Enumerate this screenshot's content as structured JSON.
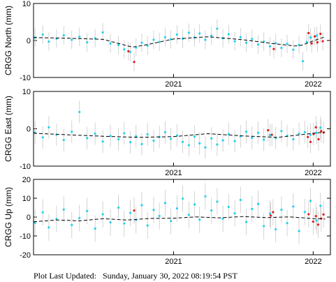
{
  "footer": {
    "label": "Plot Last Updated:",
    "timestamp": "Sunday, January 30, 2022 08:19:54 PST"
  },
  "colors": {
    "observation": "#22d3ee",
    "flagged": "#e31a1c",
    "error_bar": "#c8c8c8",
    "model": "#000000"
  },
  "chart_data": [
    {
      "type": "scatter",
      "ylabel": "CRGG North (mm)",
      "ylim": [
        -10,
        10
      ],
      "yticks": [
        -10,
        0,
        10
      ],
      "xlim": [
        "2020-01-01",
        "2022-02-15"
      ],
      "xticks": [
        {
          "label": "2021",
          "date": "2021-01-01"
        },
        {
          "label": "2022",
          "date": "2022-01-01"
        }
      ],
      "error_bar_mm": 2.5,
      "model_trend": {
        "x": [
          "2020-01-01",
          "2020-04-01",
          "2020-07-01",
          "2020-09-15",
          "2020-10-15",
          "2021-01-01",
          "2021-04-01",
          "2021-07-01",
          "2021-09-15",
          "2021-11-15",
          "2021-12-01",
          "2022-01-15",
          "2022-02-01"
        ],
        "y": [
          0.8,
          0.6,
          0.3,
          -1.8,
          -1.3,
          0.4,
          1.0,
          0.2,
          -0.8,
          -1.5,
          -1.3,
          0.4,
          1.0
        ]
      },
      "series": [
        {
          "points": [
            [
              "2020-01-05",
              0.8
            ],
            [
              "2020-01-25",
              1.6
            ],
            [
              "2020-02-10",
              -0.3
            ],
            [
              "2020-03-01",
              0.5
            ],
            [
              "2020-03-20",
              1.4
            ],
            [
              "2020-04-10",
              0.2
            ],
            [
              "2020-04-30",
              1.0
            ],
            [
              "2020-05-20",
              -0.5
            ],
            [
              "2020-06-10",
              0.6
            ],
            [
              "2020-06-30",
              2.2
            ],
            [
              "2020-07-20",
              -0.8
            ],
            [
              "2020-08-10",
              -1.2
            ],
            [
              "2020-08-25",
              -2.4
            ],
            [
              "2020-09-10",
              -3.1
            ],
            [
              "2020-09-25",
              -1.9
            ],
            [
              "2020-10-10",
              -0.6
            ],
            [
              "2020-10-25",
              -1.4
            ],
            [
              "2020-11-10",
              0.2
            ],
            [
              "2020-11-25",
              -0.4
            ],
            [
              "2020-12-10",
              0.9
            ],
            [
              "2020-12-25",
              0.3
            ],
            [
              "2021-01-10",
              1.6
            ],
            [
              "2021-01-25",
              0.5
            ],
            [
              "2021-02-10",
              2.1
            ],
            [
              "2021-02-25",
              0.8
            ],
            [
              "2021-03-10",
              1.9
            ],
            [
              "2021-03-25",
              0.2
            ],
            [
              "2021-04-10",
              1.3
            ],
            [
              "2021-04-25",
              3.2
            ],
            [
              "2021-05-10",
              0.6
            ],
            [
              "2021-05-25",
              1.7
            ],
            [
              "2021-06-10",
              -0.2
            ],
            [
              "2021-06-25",
              0.9
            ],
            [
              "2021-07-10",
              -0.6
            ],
            [
              "2021-07-25",
              0.4
            ],
            [
              "2021-08-10",
              -1.1
            ],
            [
              "2021-08-25",
              -0.3
            ],
            [
              "2021-09-10",
              -1.6
            ],
            [
              "2021-09-25",
              -0.7
            ],
            [
              "2021-10-10",
              -2.0
            ],
            [
              "2021-10-25",
              -0.9
            ],
            [
              "2021-11-10",
              -2.5
            ],
            [
              "2021-11-25",
              -1.2
            ],
            [
              "2021-12-05",
              -5.6
            ],
            [
              "2021-12-15",
              -0.4
            ],
            [
              "2021-12-25",
              0.8
            ],
            [
              "2022-01-10",
              1.3
            ]
          ]
        },
        {
          "points": [
            [
              "2020-09-05",
              -2.9
            ],
            [
              "2020-09-20",
              -5.8
            ],
            [
              "2021-09-20",
              -2.3
            ],
            [
              "2021-12-20",
              2.0
            ],
            [
              "2021-12-28",
              -0.8
            ],
            [
              "2022-01-05",
              1.1
            ],
            [
              "2022-01-12",
              -0.5
            ],
            [
              "2022-01-20",
              1.8
            ],
            [
              "2022-01-26",
              -0.2
            ]
          ]
        }
      ]
    },
    {
      "type": "scatter",
      "ylabel": "CRGG East (mm)",
      "ylim": [
        -10,
        10
      ],
      "yticks": [
        -10,
        0,
        10
      ],
      "xlim": [
        "2020-01-01",
        "2022-02-15"
      ],
      "xticks": [
        {
          "label": "2021",
          "date": "2021-01-01"
        },
        {
          "label": "2022",
          "date": "2022-01-01"
        }
      ],
      "error_bar_mm": 3.0,
      "model_trend": {
        "x": [
          "2020-01-01",
          "2020-04-01",
          "2020-07-01",
          "2020-10-01",
          "2021-01-01",
          "2021-04-01",
          "2021-07-01",
          "2021-10-01",
          "2022-01-01",
          "2022-02-01"
        ],
        "y": [
          -1.2,
          -1.6,
          -2.0,
          -2.3,
          -2.1,
          -1.3,
          -1.9,
          -2.3,
          -1.2,
          -0.9
        ]
      },
      "series": [
        {
          "points": [
            [
              "2020-01-05",
              -1.0
            ],
            [
              "2020-01-25",
              -2.3
            ],
            [
              "2020-02-10",
              0.4
            ],
            [
              "2020-03-01",
              -1.6
            ],
            [
              "2020-03-20",
              -3.0
            ],
            [
              "2020-04-10",
              -0.8
            ],
            [
              "2020-04-30",
              4.5
            ],
            [
              "2020-05-20",
              -2.5
            ],
            [
              "2020-06-10",
              -1.3
            ],
            [
              "2020-06-30",
              -3.4
            ],
            [
              "2020-07-20",
              -1.9
            ],
            [
              "2020-08-10",
              -2.8
            ],
            [
              "2020-08-25",
              -1.2
            ],
            [
              "2020-09-10",
              -3.6
            ],
            [
              "2020-09-25",
              -2.0
            ],
            [
              "2020-10-10",
              -4.1
            ],
            [
              "2020-10-25",
              -1.5
            ],
            [
              "2020-11-10",
              -3.2
            ],
            [
              "2020-11-25",
              -2.2
            ],
            [
              "2020-12-10",
              -0.9
            ],
            [
              "2020-12-25",
              -2.7
            ],
            [
              "2021-01-10",
              -1.8
            ],
            [
              "2021-01-25",
              -3.5
            ],
            [
              "2021-02-10",
              -4.4
            ],
            [
              "2021-02-25",
              -2.1
            ],
            [
              "2021-03-10",
              -3.9
            ],
            [
              "2021-03-25",
              -5.0
            ],
            [
              "2021-04-10",
              -2.6
            ],
            [
              "2021-04-25",
              -4.2
            ],
            [
              "2021-05-10",
              -3.1
            ],
            [
              "2021-05-25",
              -1.4
            ],
            [
              "2021-06-10",
              -3.3
            ],
            [
              "2021-06-25",
              -2.0
            ],
            [
              "2021-07-10",
              -0.8
            ],
            [
              "2021-07-25",
              -2.4
            ],
            [
              "2021-08-10",
              -1.1
            ],
            [
              "2021-08-25",
              -2.9
            ],
            [
              "2021-09-10",
              -1.7
            ],
            [
              "2021-09-25",
              -2.5
            ],
            [
              "2021-10-10",
              -0.6
            ],
            [
              "2021-10-25",
              -1.9
            ],
            [
              "2021-11-10",
              -2.8
            ],
            [
              "2021-11-25",
              -1.3
            ],
            [
              "2021-12-10",
              -0.9
            ],
            [
              "2021-12-25",
              -1.6
            ],
            [
              "2022-01-10",
              -1.1
            ],
            [
              "2022-01-20",
              0.3
            ]
          ]
        },
        {
          "points": [
            [
              "2021-09-05",
              -0.4
            ],
            [
              "2021-09-15",
              -1.6
            ],
            [
              "2021-12-18",
              -2.2
            ],
            [
              "2021-12-25",
              -3.5
            ],
            [
              "2022-01-02",
              -1.4
            ],
            [
              "2022-01-08",
              0.4
            ],
            [
              "2022-01-15",
              -2.8
            ],
            [
              "2022-01-22",
              -0.6
            ],
            [
              "2022-01-28",
              -1.0
            ]
          ]
        }
      ]
    },
    {
      "type": "scatter",
      "ylabel": "CRGG Up (mm)",
      "ylim": [
        -20,
        20
      ],
      "yticks": [
        -20,
        -10,
        0,
        10,
        20
      ],
      "xlim": [
        "2020-01-01",
        "2022-02-15"
      ],
      "xticks": [
        {
          "label": "2021",
          "date": "2021-01-01"
        },
        {
          "label": "2022",
          "date": "2022-01-01"
        }
      ],
      "error_bar_mm": 7.0,
      "model_trend": {
        "x": [
          "2020-01-01",
          "2020-03-01",
          "2020-05-01",
          "2020-07-01",
          "2020-09-01",
          "2020-11-01",
          "2021-01-01",
          "2021-03-01",
          "2021-05-01",
          "2021-07-01",
          "2021-09-01",
          "2021-11-01",
          "2022-01-01",
          "2022-02-01"
        ],
        "y": [
          -2.5,
          -1.5,
          -2.0,
          -0.8,
          -1.6,
          -0.7,
          -0.6,
          0.1,
          -0.4,
          0.3,
          -0.3,
          0.1,
          -0.8,
          -1.0
        ]
      },
      "series": [
        {
          "points": [
            [
              "2020-01-05",
              -3.0
            ],
            [
              "2020-01-25",
              2.5
            ],
            [
              "2020-02-10",
              -5.5
            ],
            [
              "2020-03-01",
              -1.0
            ],
            [
              "2020-03-20",
              4.0
            ],
            [
              "2020-04-10",
              -4.2
            ],
            [
              "2020-04-30",
              -0.5
            ],
            [
              "2020-05-20",
              3.2
            ],
            [
              "2020-06-10",
              -6.1
            ],
            [
              "2020-06-30",
              1.5
            ],
            [
              "2020-07-20",
              -2.8
            ],
            [
              "2020-08-10",
              5.0
            ],
            [
              "2020-08-25",
              -3.4
            ],
            [
              "2020-09-10",
              2.2
            ],
            [
              "2020-09-25",
              -1.6
            ],
            [
              "2020-10-10",
              6.3
            ],
            [
              "2020-10-25",
              -4.5
            ],
            [
              "2020-11-10",
              3.8
            ],
            [
              "2020-11-25",
              0.6
            ],
            [
              "2020-12-10",
              7.5
            ],
            [
              "2020-12-25",
              -2.1
            ],
            [
              "2021-01-10",
              4.6
            ],
            [
              "2021-01-25",
              9.8
            ],
            [
              "2021-02-10",
              1.2
            ],
            [
              "2021-02-25",
              6.7
            ],
            [
              "2021-03-10",
              -1.4
            ],
            [
              "2021-03-25",
              11.0
            ],
            [
              "2021-04-10",
              3.5
            ],
            [
              "2021-04-25",
              8.2
            ],
            [
              "2021-05-10",
              -0.9
            ],
            [
              "2021-05-25",
              5.4
            ],
            [
              "2021-06-10",
              2.0
            ],
            [
              "2021-06-25",
              9.1
            ],
            [
              "2021-07-10",
              -2.6
            ],
            [
              "2021-07-25",
              4.3
            ],
            [
              "2021-08-10",
              7.0
            ],
            [
              "2021-08-25",
              -4.8
            ],
            [
              "2021-09-10",
              1.8
            ],
            [
              "2021-09-25",
              -6.5
            ],
            [
              "2021-10-10",
              3.9
            ],
            [
              "2021-10-25",
              -3.2
            ],
            [
              "2021-11-10",
              5.6
            ],
            [
              "2021-11-25",
              -7.4
            ],
            [
              "2021-12-10",
              2.7
            ],
            [
              "2021-12-25",
              8.6
            ],
            [
              "2022-01-10",
              -1.9
            ],
            [
              "2022-01-20",
              6.0
            ]
          ]
        },
        {
          "points": [
            [
              "2020-09-20",
              3.5
            ],
            [
              "2021-09-12",
              0.8
            ],
            [
              "2021-09-18",
              2.6
            ],
            [
              "2021-12-20",
              1.5
            ],
            [
              "2022-01-01",
              -2.4
            ],
            [
              "2022-01-08",
              0.5
            ],
            [
              "2022-01-14",
              -4.0
            ],
            [
              "2022-01-22",
              -0.8
            ],
            [
              "2022-01-28",
              1.4
            ]
          ]
        }
      ]
    }
  ]
}
